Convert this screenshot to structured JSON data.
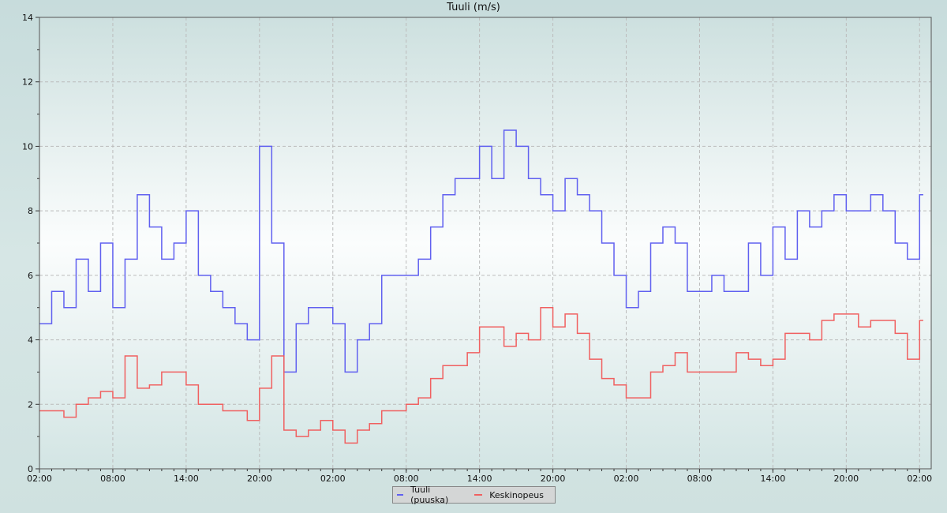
{
  "chart_data": {
    "type": "line",
    "title": "Tuuli (m/s)",
    "step": true,
    "xlabel": "",
    "ylabel": "",
    "ylim": [
      0,
      14
    ],
    "y_ticks": [
      0,
      2,
      4,
      6,
      8,
      10,
      12,
      14
    ],
    "x_tick_labels": [
      "02:00",
      "08:00",
      "14:00",
      "20:00",
      "02:00",
      "08:00",
      "14:00",
      "20:00",
      "02:00",
      "08:00",
      "14:00",
      "20:00",
      "02:00"
    ],
    "x_hours_from_start": [
      0,
      1,
      2,
      3,
      4,
      5,
      6,
      7,
      8,
      9,
      10,
      11,
      12,
      13,
      14,
      15,
      16,
      17,
      18,
      19,
      20,
      21,
      22,
      23,
      24,
      25,
      26,
      27,
      28,
      29,
      30,
      31,
      32,
      33,
      34,
      35,
      36,
      37,
      38,
      39,
      40,
      41,
      42,
      43,
      44,
      45,
      46,
      47,
      48,
      49,
      50,
      51,
      52,
      53,
      54,
      55,
      56,
      57,
      58,
      59,
      60,
      61,
      62,
      63,
      64,
      65,
      66,
      67,
      68,
      69,
      70,
      71,
      72
    ],
    "grid": true,
    "legend": "bottom-center",
    "series": [
      {
        "name": "Tuuli (puuska)",
        "color": "#6060f0",
        "values": [
          4.5,
          5.5,
          5,
          6.5,
          5.5,
          7,
          5,
          6.5,
          8.5,
          7.5,
          6.5,
          7,
          8,
          6,
          5.5,
          5,
          4.5,
          4,
          10,
          7,
          3,
          4.5,
          5,
          5,
          4.5,
          3,
          4,
          4.5,
          6,
          6,
          6,
          6.5,
          7.5,
          8.5,
          9,
          9,
          10,
          9,
          10.5,
          10,
          9,
          8.5,
          8,
          9,
          8.5,
          8,
          7,
          6,
          5,
          5.5,
          7,
          7.5,
          7,
          5.5,
          5.5,
          6,
          5.5,
          5.5,
          7,
          6,
          7.5,
          6.5,
          8,
          7.5,
          8,
          8.5,
          8,
          8,
          8.5,
          8,
          7,
          6.5,
          8.5
        ]
      },
      {
        "name": "Keskinopeus",
        "color": "#f06060",
        "values": [
          1.8,
          1.8,
          1.6,
          2.0,
          2.2,
          2.4,
          2.2,
          3.5,
          2.5,
          2.6,
          3.0,
          3.0,
          2.6,
          2.0,
          2.0,
          1.8,
          1.8,
          1.5,
          2.5,
          3.5,
          1.2,
          1.0,
          1.2,
          1.5,
          1.2,
          0.8,
          1.2,
          1.4,
          1.8,
          1.8,
          2.0,
          2.2,
          2.8,
          3.2,
          3.2,
          3.6,
          4.4,
          4.4,
          3.8,
          4.2,
          4.0,
          5.0,
          4.4,
          4.8,
          4.2,
          3.4,
          2.8,
          2.6,
          2.2,
          2.2,
          3.0,
          3.2,
          3.6,
          3.0,
          3.0,
          3.0,
          3.0,
          3.6,
          3.4,
          3.2,
          3.4,
          4.2,
          4.2,
          4.0,
          4.6,
          4.8,
          4.8,
          4.4,
          4.6,
          4.6,
          4.2,
          3.4,
          4.6
        ]
      }
    ]
  }
}
